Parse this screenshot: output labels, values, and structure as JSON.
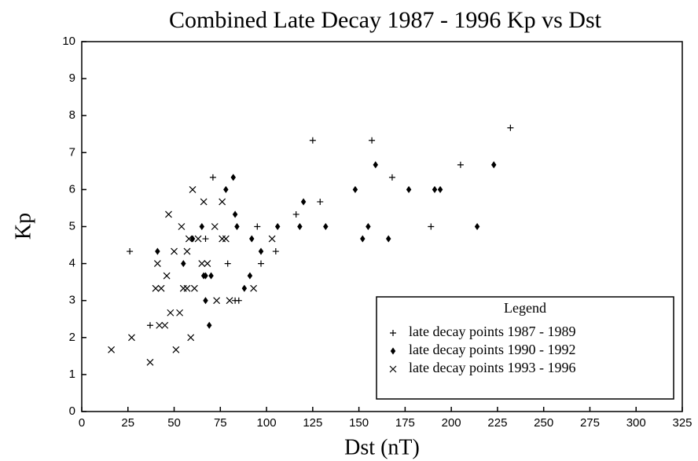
{
  "chart_data": {
    "type": "scatter",
    "title": "Combined Late Decay 1987 - 1996  Kp vs Dst",
    "x_label": "Dst  (nT)",
    "y_label": "Kp",
    "legend_title": "Legend",
    "xlim": [
      0,
      325
    ],
    "xticks": [
      0,
      25,
      50,
      75,
      100,
      125,
      150,
      175,
      200,
      225,
      250,
      275,
      300,
      325
    ],
    "ylim": [
      0,
      10
    ],
    "yticks": [
      0,
      1,
      2,
      3,
      4,
      5,
      6,
      7,
      8,
      9,
      10
    ],
    "series": [
      {
        "name": "late decay points 1987 - 1989",
        "color": "#000000",
        "marker": "plus",
        "x": [
          26,
          37,
          71,
          79,
          83,
          85,
          67,
          95,
          97,
          105,
          116,
          125,
          129,
          157,
          168,
          189,
          205,
          232
        ],
        "values": [
          4.33,
          2.33,
          6.33,
          4,
          3,
          3,
          4.67,
          5,
          4,
          4.33,
          5.33,
          7.33,
          5.67,
          7.33,
          6.33,
          5,
          6.67,
          7.67
        ]
      },
      {
        "name": "late decay points 1990 - 1992",
        "color": "#000000",
        "marker": "diamond",
        "x": [
          41,
          55,
          60,
          65,
          66,
          67,
          70,
          67,
          69,
          78,
          82,
          83,
          84,
          88,
          91,
          92,
          97,
          106,
          120,
          118,
          132,
          148,
          152,
          155,
          159,
          166,
          177,
          191,
          194,
          214,
          223
        ],
        "values": [
          4.33,
          4,
          4.67,
          5,
          3.67,
          3.67,
          3.67,
          3,
          2.33,
          6,
          6.33,
          5.33,
          5,
          3.33,
          3.67,
          4.67,
          4.33,
          5,
          5.67,
          5,
          5,
          6,
          4.67,
          5,
          6.67,
          4.67,
          6,
          6,
          6,
          5,
          6.67
        ]
      },
      {
        "name": "late decay points 1993 - 1996",
        "color": "#000000",
        "marker": "cross",
        "x": [
          16,
          27,
          37,
          40,
          41,
          43,
          42,
          45,
          46,
          47,
          48,
          50,
          51,
          53,
          54,
          55,
          57,
          57,
          58,
          59,
          60,
          61,
          63,
          65,
          68,
          66,
          72,
          73,
          76,
          78,
          76,
          80,
          93,
          103
        ],
        "values": [
          1.67,
          2,
          1.33,
          3.33,
          4,
          3.33,
          2.33,
          2.33,
          3.67,
          5.33,
          2.67,
          4.33,
          1.67,
          2.67,
          5,
          3.33,
          3.33,
          4.33,
          4.67,
          2,
          6,
          3.33,
          4.67,
          4,
          4,
          5.67,
          5,
          3,
          4.67,
          4.67,
          5.67,
          3,
          3.33,
          4.67
        ]
      }
    ]
  }
}
